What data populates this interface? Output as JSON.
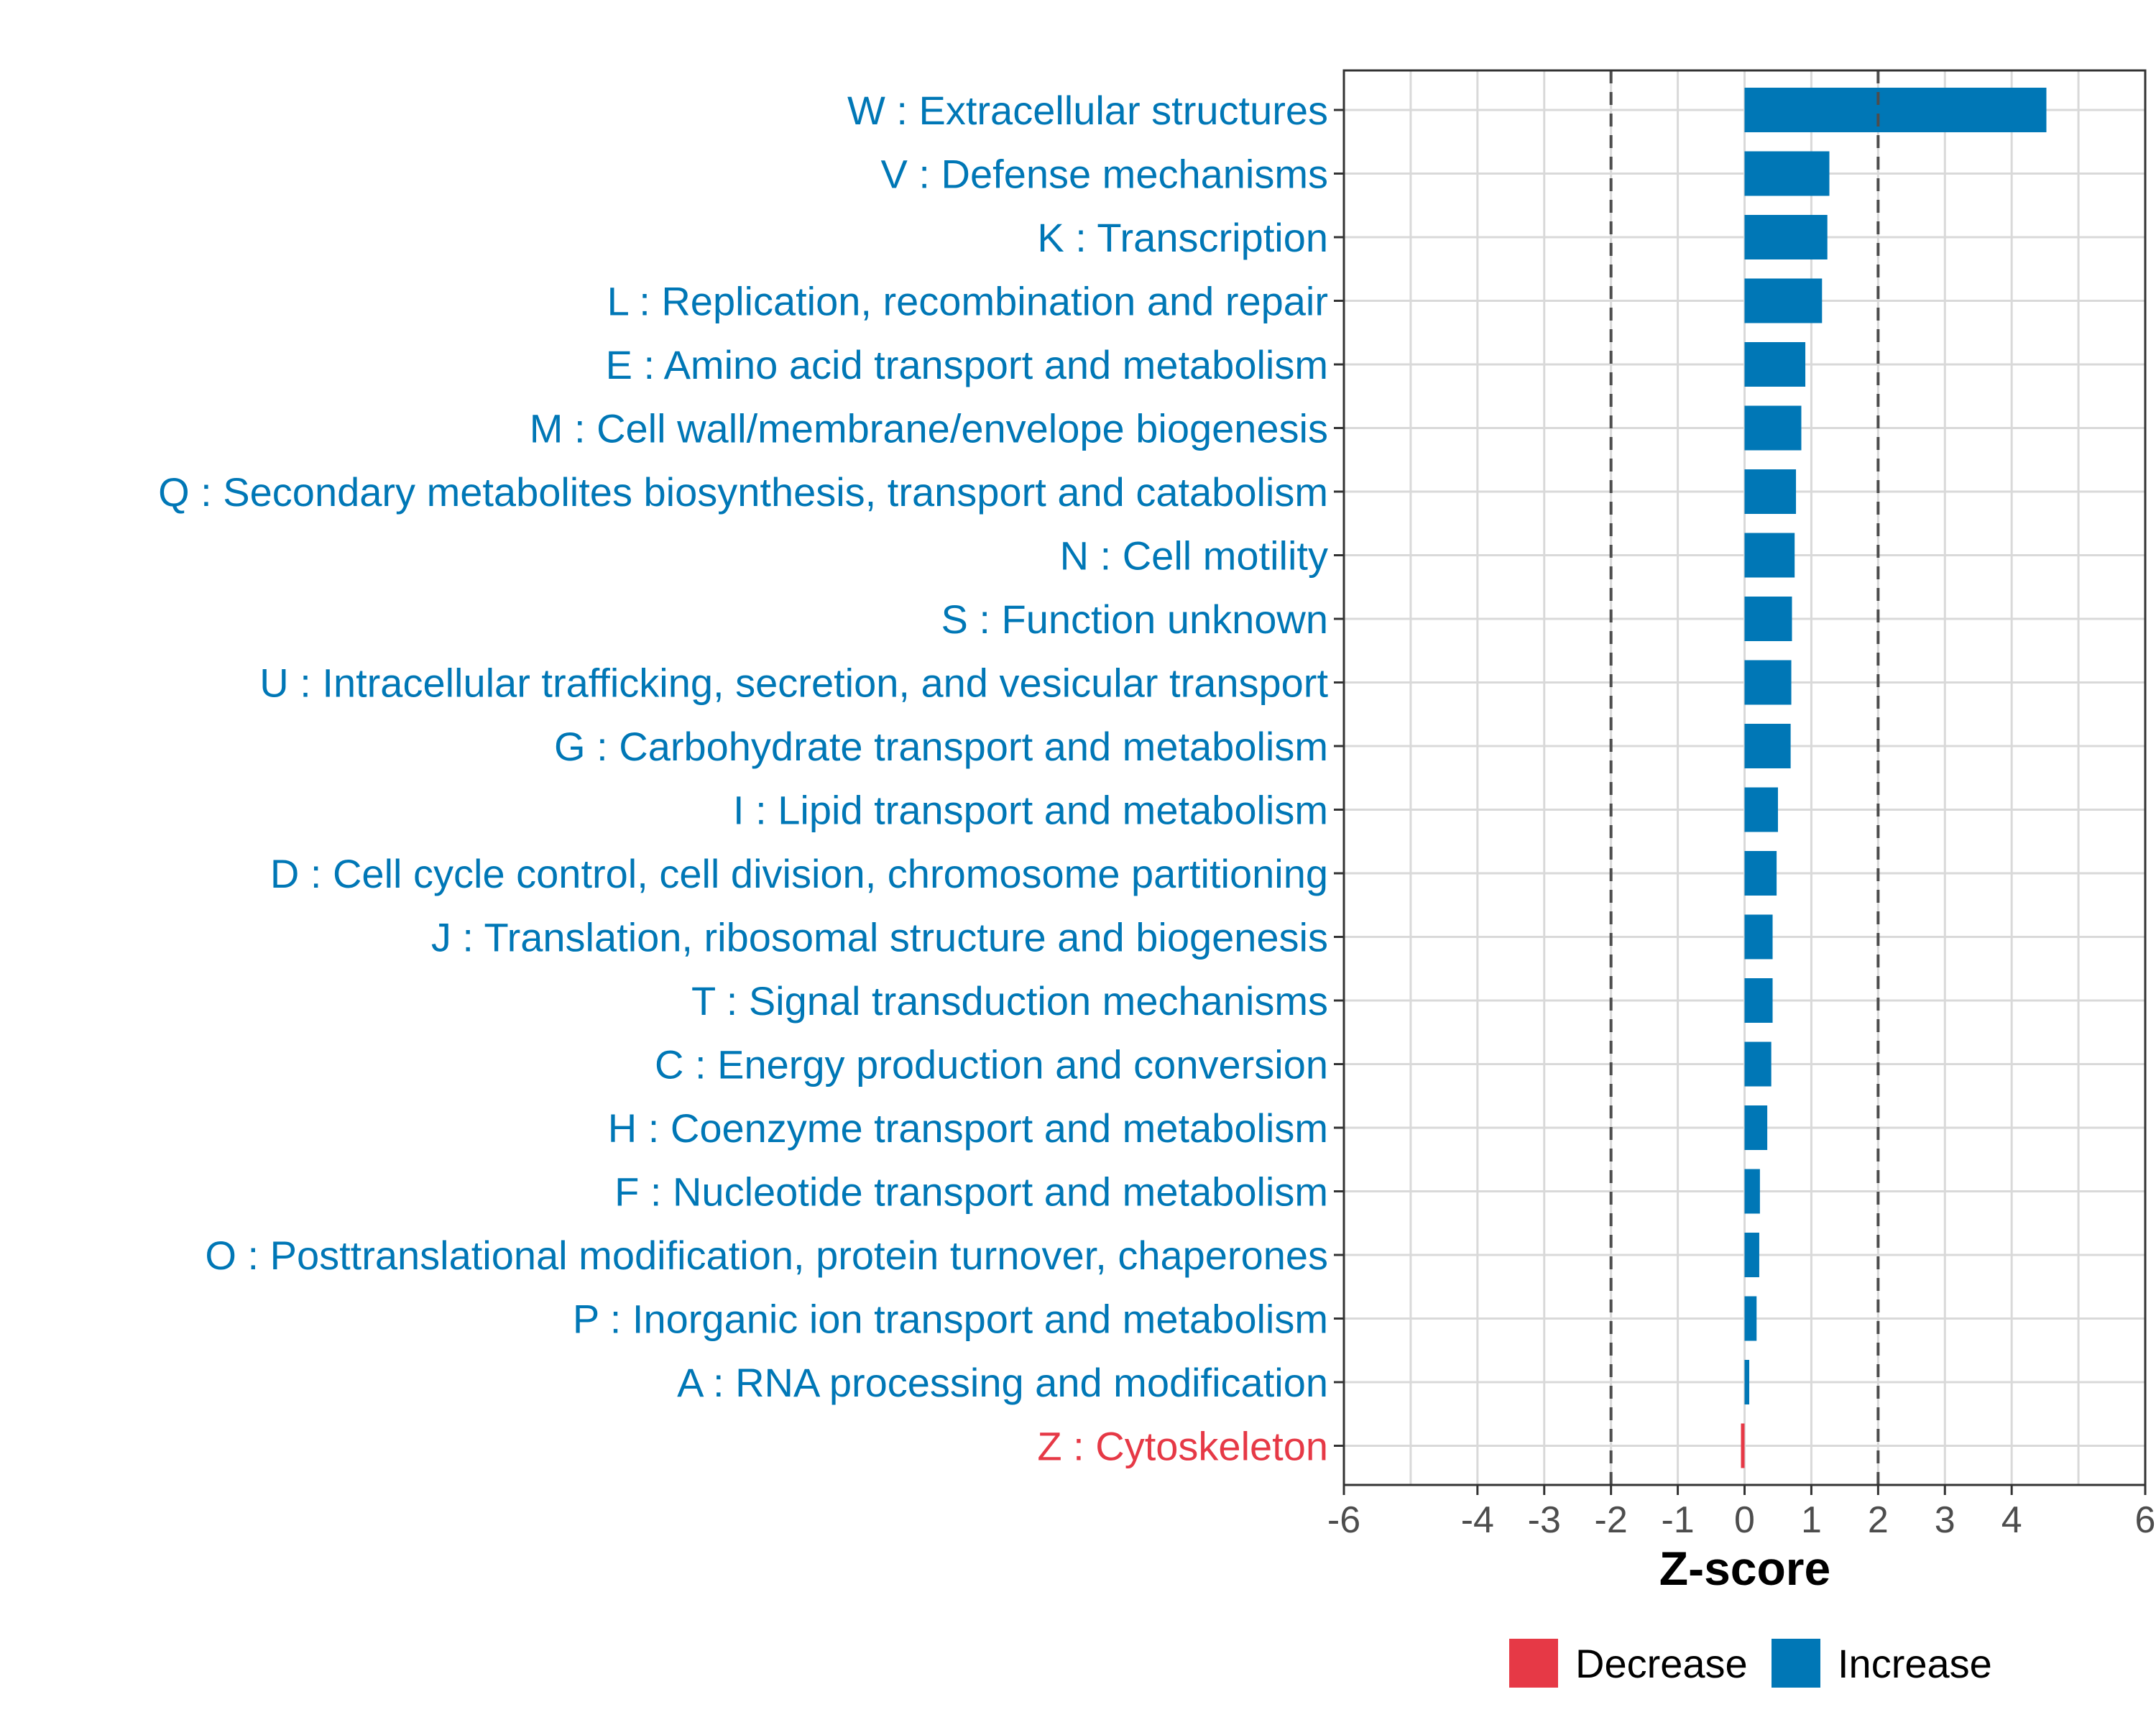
{
  "chart_data": {
    "type": "bar",
    "orientation": "horizontal",
    "xlabel": "Z-score",
    "xlim": [
      -6,
      6
    ],
    "xticks": [
      -6,
      -4,
      -3,
      -2,
      -1,
      0,
      1,
      2,
      3,
      4,
      6
    ],
    "threshold_lines": [
      -2,
      2
    ],
    "grid": true,
    "categories": [
      "W : Extracellular structures",
      "V : Defense mechanisms",
      "K : Transcription",
      "L : Replication, recombination and repair",
      "E : Amino acid transport and metabolism",
      "M : Cell wall/membrane/envelope biogenesis",
      "Q : Secondary metabolites biosynthesis, transport and catabolism",
      "N : Cell motility",
      "S : Function unknown",
      "U : Intracellular trafficking, secretion, and vesicular transport",
      "G : Carbohydrate transport and metabolism",
      "I : Lipid transport and metabolism",
      "D : Cell cycle control, cell division, chromosome partitioning",
      "J : Translation, ribosomal structure and biogenesis",
      "T : Signal transduction mechanisms",
      "C : Energy production and conversion",
      "H : Coenzyme transport and metabolism",
      "F : Nucleotide transport and metabolism",
      "O : Posttranslational modification, protein turnover, chaperones",
      "P : Inorganic ion transport and metabolism",
      "A : RNA processing and modification",
      "Z : Cytoskeleton"
    ],
    "values": [
      4.52,
      1.27,
      1.24,
      1.16,
      0.91,
      0.85,
      0.77,
      0.75,
      0.71,
      0.7,
      0.69,
      0.5,
      0.48,
      0.42,
      0.42,
      0.4,
      0.34,
      0.23,
      0.22,
      0.18,
      0.07,
      -0.03
    ],
    "legend": {
      "position": "bottom",
      "entries": [
        {
          "label": "Decrease",
          "color": "#E63946"
        },
        {
          "label": "Increase",
          "color": "#0077B6"
        }
      ]
    },
    "colors": {
      "decrease": "#E63946",
      "increase": "#0077B6",
      "grid": "#d9d9d9",
      "threshold": "#4d4d4d"
    }
  }
}
